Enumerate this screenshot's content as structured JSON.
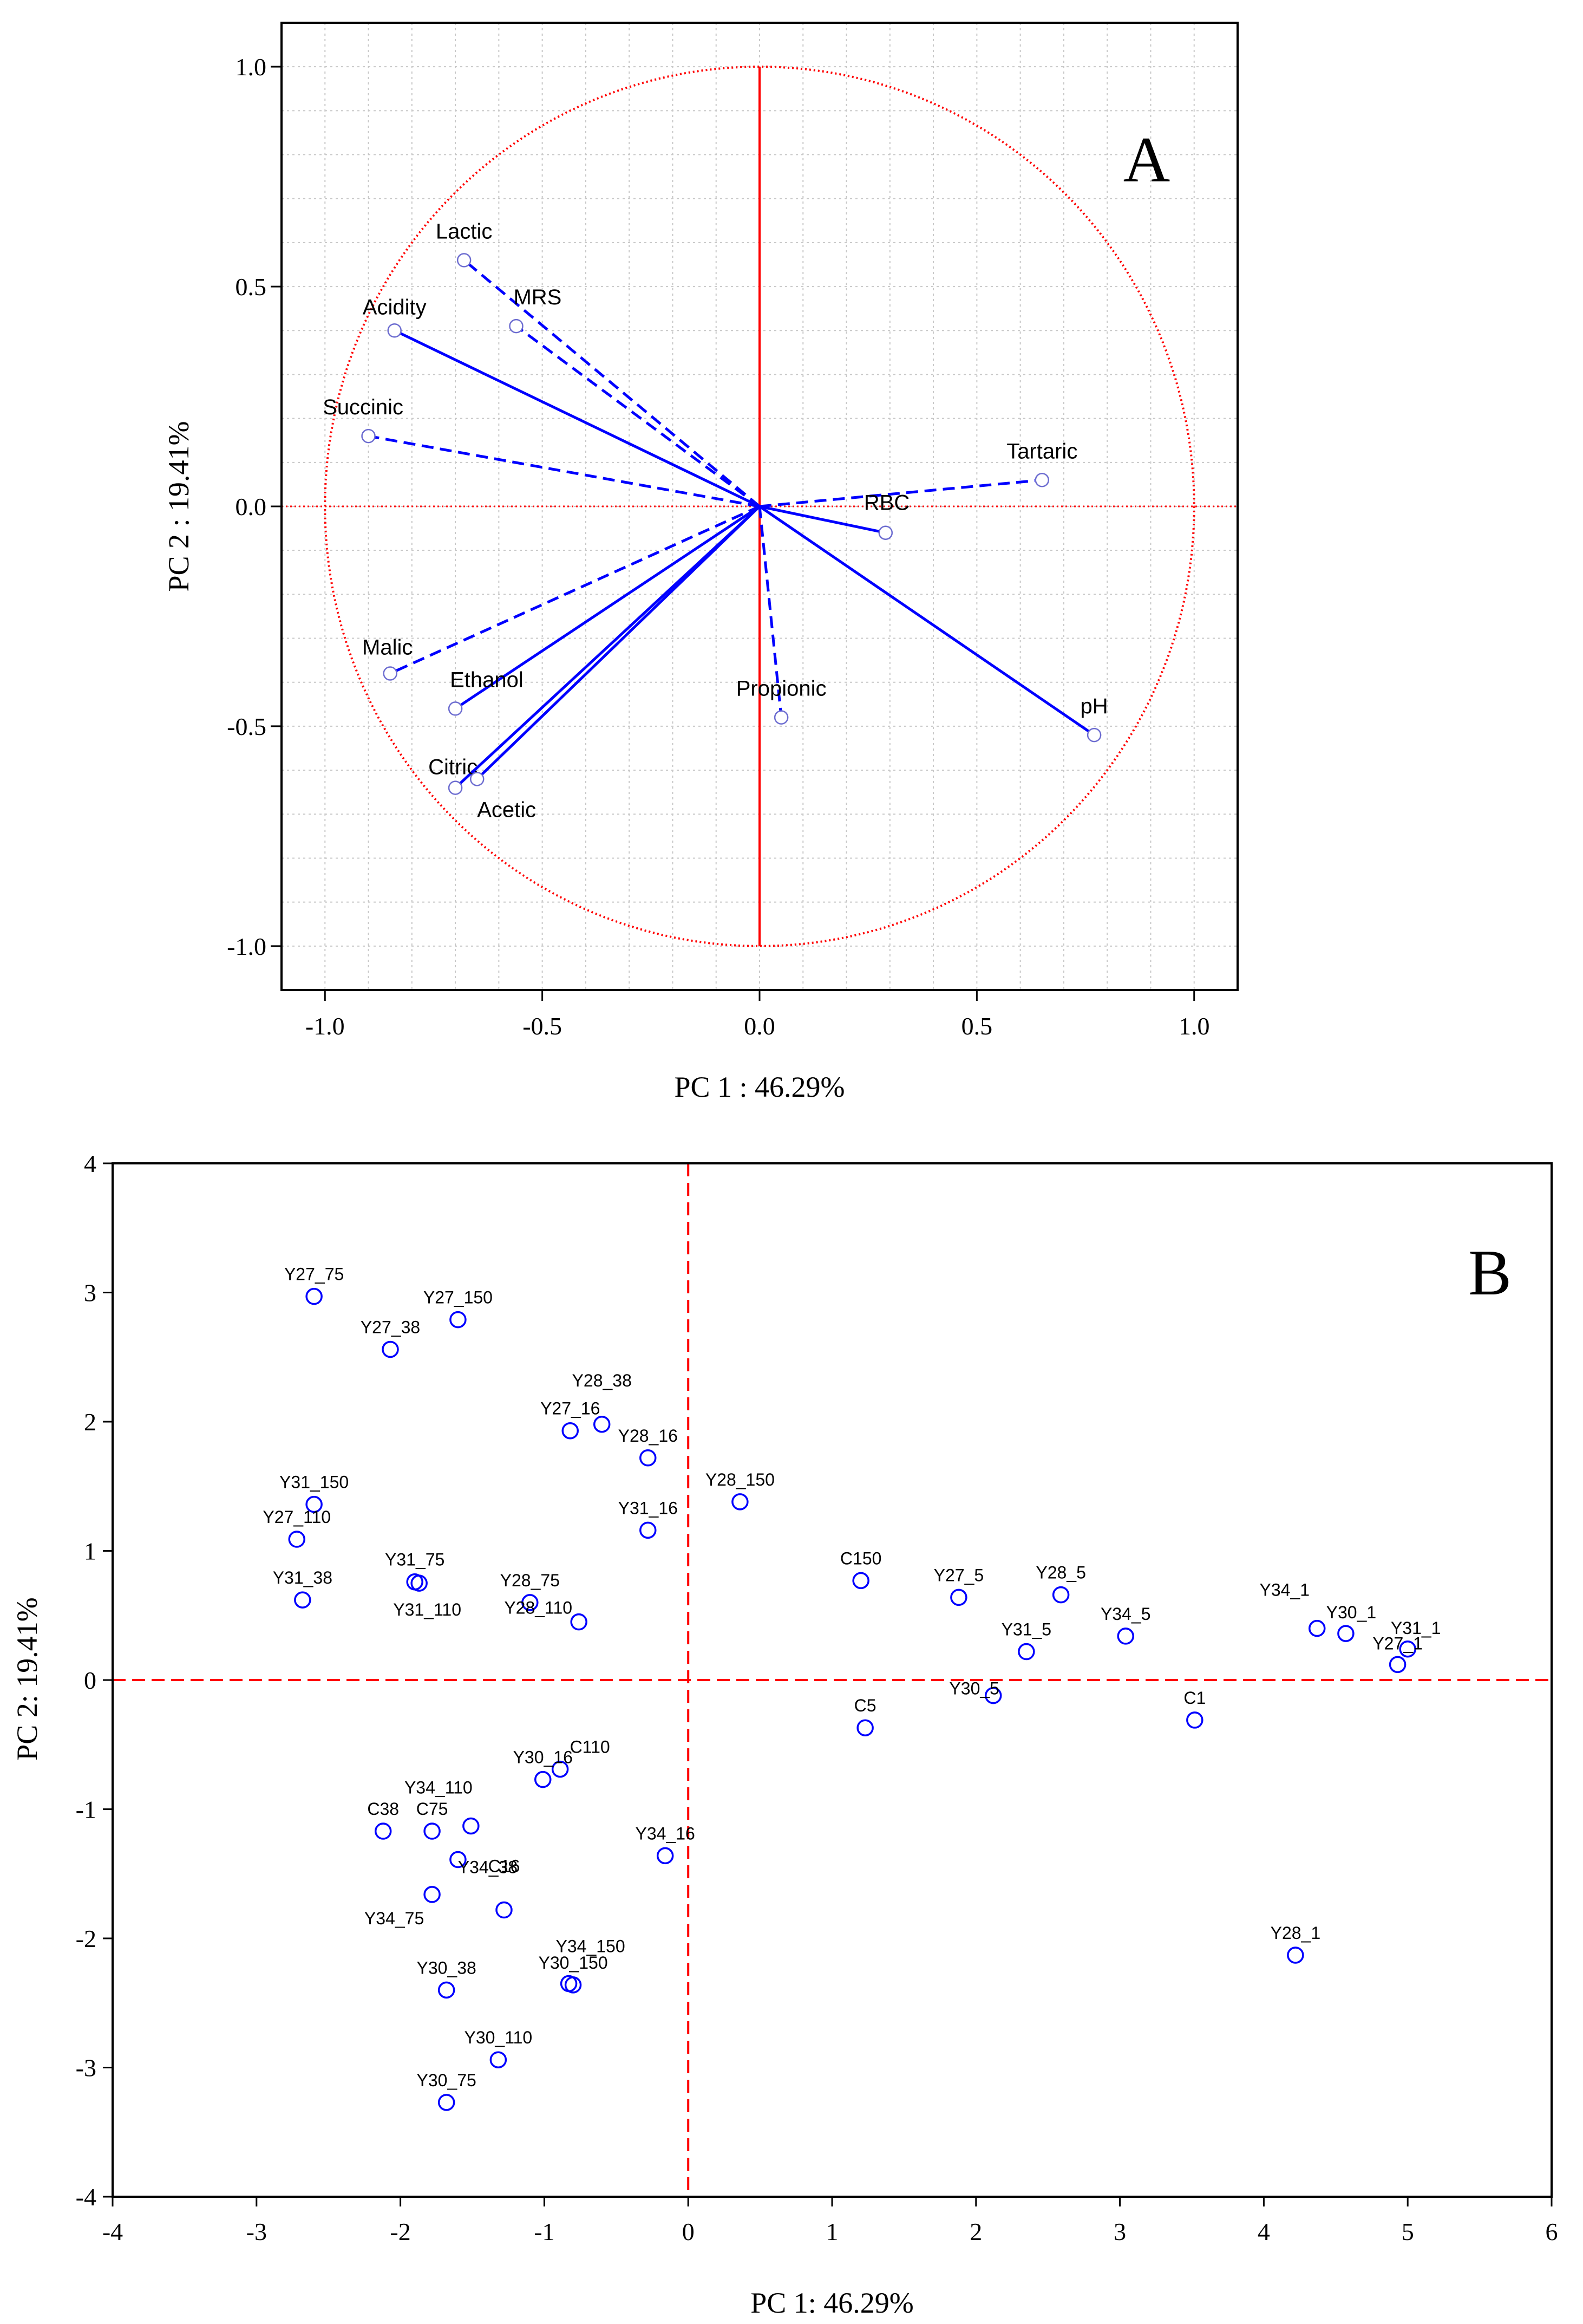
{
  "chart_data": [
    {
      "type": "scatter",
      "subtype": "loading-circle",
      "panel_label": "A",
      "xlabel": "PC 1 : 46.29%",
      "ylabel": "PC 2 : 19.41%",
      "xlim": [
        -1.1,
        1.1
      ],
      "ylim": [
        -1.1,
        1.1
      ],
      "xticks": [
        -1.0,
        -0.5,
        0.0,
        0.5,
        1.0
      ],
      "yticks": [
        -1.0,
        -0.5,
        0.0,
        0.5,
        1.0
      ],
      "xtick_labels": [
        "-1.0",
        "-0.5",
        "0.0",
        "0.5",
        "1.0"
      ],
      "ytick_labels": [
        "-1.0",
        "-0.5",
        "0.0",
        "0.5",
        "1.0"
      ],
      "grid": true,
      "unit_circle": true,
      "colors": {
        "vectors": "#0000ff",
        "circle": "#ff0000"
      },
      "vectors": [
        {
          "name": "Lactic",
          "x": -0.68,
          "y": 0.56,
          "style": "dashed"
        },
        {
          "name": "MRS",
          "x": -0.56,
          "y": 0.41,
          "style": "dashed"
        },
        {
          "name": "Acidity",
          "x": -0.84,
          "y": 0.4,
          "style": "solid"
        },
        {
          "name": "Succinic",
          "x": -0.9,
          "y": 0.16,
          "style": "dashed"
        },
        {
          "name": "Tartaric",
          "x": 0.65,
          "y": 0.06,
          "style": "dashed"
        },
        {
          "name": "RBC",
          "x": 0.29,
          "y": -0.06,
          "style": "solid"
        },
        {
          "name": "Malic",
          "x": -0.85,
          "y": -0.38,
          "style": "dashed"
        },
        {
          "name": "Ethanol",
          "x": -0.7,
          "y": -0.46,
          "style": "solid"
        },
        {
          "name": "Citric",
          "x": -0.7,
          "y": -0.64,
          "style": "solid"
        },
        {
          "name": "Acetic",
          "x": -0.65,
          "y": -0.62,
          "style": "solid"
        },
        {
          "name": "Propionic",
          "x": 0.05,
          "y": -0.48,
          "style": "dashed"
        },
        {
          "name": "pH",
          "x": 0.77,
          "y": -0.52,
          "style": "solid"
        }
      ]
    },
    {
      "type": "scatter",
      "panel_label": "B",
      "xlabel": "PC 1: 46.29%",
      "ylabel": "PC 2: 19.41%",
      "xlim": [
        -4,
        6
      ],
      "ylim": [
        -4,
        4
      ],
      "xticks": [
        -4,
        -3,
        -2,
        -1,
        0,
        1,
        2,
        3,
        4,
        5,
        6
      ],
      "yticks": [
        -4,
        -3,
        -2,
        -1,
        0,
        1,
        2,
        3,
        4
      ],
      "xtick_labels": [
        "-4",
        "-3",
        "-2",
        "-1",
        "0",
        "1",
        "2",
        "3",
        "4",
        "5",
        "6"
      ],
      "ytick_labels": [
        "-4",
        "-3",
        "-2",
        "-1",
        "0",
        "1",
        "2",
        "3",
        "4"
      ],
      "grid": false,
      "colors": {
        "points": "#0000ff",
        "axes_lines": "#ff0000"
      },
      "points": [
        {
          "label": "Y27_75",
          "x": -2.6,
          "y": 2.97
        },
        {
          "label": "Y27_150",
          "x": -1.6,
          "y": 2.79
        },
        {
          "label": "Y27_38",
          "x": -2.07,
          "y": 2.56
        },
        {
          "label": "Y28_38",
          "x": -0.6,
          "y": 1.98
        },
        {
          "label": "Y27_16",
          "x": -0.82,
          "y": 1.93
        },
        {
          "label": "Y28_16",
          "x": -0.28,
          "y": 1.72
        },
        {
          "label": "Y31_150",
          "x": -2.6,
          "y": 1.36
        },
        {
          "label": "Y28_150",
          "x": 0.36,
          "y": 1.38
        },
        {
          "label": "Y27_110",
          "x": -2.72,
          "y": 1.09
        },
        {
          "label": "Y31_16",
          "x": -0.28,
          "y": 1.16
        },
        {
          "label": "Y31_75",
          "x": -1.9,
          "y": 0.76
        },
        {
          "label": "Y31_38",
          "x": -2.68,
          "y": 0.62
        },
        {
          "label": "Y31_110",
          "x": -1.87,
          "y": 0.75
        },
        {
          "label": "Y28_75",
          "x": -1.1,
          "y": 0.6
        },
        {
          "label": "Y28_110",
          "x": -0.76,
          "y": 0.45
        },
        {
          "label": "C150",
          "x": 1.2,
          "y": 0.77
        },
        {
          "label": "Y27_5",
          "x": 1.88,
          "y": 0.64
        },
        {
          "label": "Y28_5",
          "x": 2.59,
          "y": 0.66
        },
        {
          "label": "Y31_5",
          "x": 2.35,
          "y": 0.22
        },
        {
          "label": "Y34_5",
          "x": 3.04,
          "y": 0.34
        },
        {
          "label": "Y30_5",
          "x": 2.12,
          "y": -0.12
        },
        {
          "label": "C5",
          "x": 1.23,
          "y": -0.37
        },
        {
          "label": "C1",
          "x": 3.52,
          "y": -0.31
        },
        {
          "label": "Y34_1",
          "x": 4.37,
          "y": 0.4
        },
        {
          "label": "Y30_1",
          "x": 4.57,
          "y": 0.36
        },
        {
          "label": "Y31_1",
          "x": 5.0,
          "y": 0.24
        },
        {
          "label": "Y27_1",
          "x": 4.93,
          "y": 0.12
        },
        {
          "label": "C110",
          "x": -0.89,
          "y": -0.69
        },
        {
          "label": "Y30_16",
          "x": -1.01,
          "y": -0.77
        },
        {
          "label": "Y34_110",
          "x": -1.51,
          "y": -1.13
        },
        {
          "label": "C38",
          "x": -2.12,
          "y": -1.17
        },
        {
          "label": "C75",
          "x": -1.78,
          "y": -1.17
        },
        {
          "label": "Y34_38",
          "x": -1.6,
          "y": -1.39
        },
        {
          "label": "Y34_75",
          "x": -1.78,
          "y": -1.66
        },
        {
          "label": "C16",
          "x": -1.28,
          "y": -1.78
        },
        {
          "label": "Y34_150",
          "x": -0.83,
          "y": -2.35
        },
        {
          "label": "Y34_16",
          "x": -0.16,
          "y": -1.36
        },
        {
          "label": "Y30_38",
          "x": -1.68,
          "y": -2.4
        },
        {
          "label": "Y30_150",
          "x": -0.8,
          "y": -2.36
        },
        {
          "label": "Y30_110",
          "x": -1.32,
          "y": -2.94
        },
        {
          "label": "Y30_75",
          "x": -1.68,
          "y": -3.27
        },
        {
          "label": "Y28_1",
          "x": 4.22,
          "y": -2.13
        }
      ]
    }
  ]
}
